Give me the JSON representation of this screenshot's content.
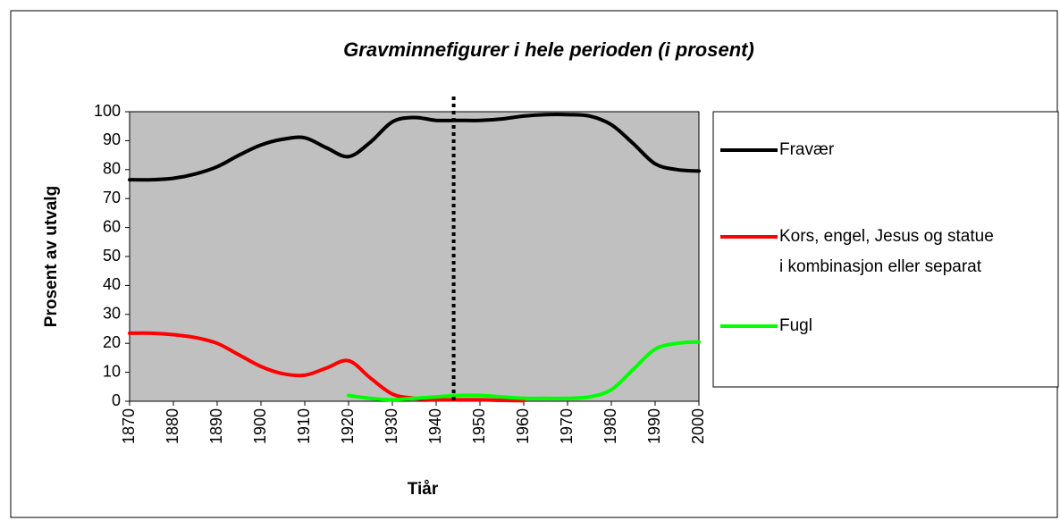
{
  "chart_data": {
    "type": "line",
    "title": "Gravminnefigurer i hele perioden (i prosent)",
    "x_label": "Tiår",
    "y_label": "Prosent av utvalg",
    "x": [
      1870,
      1875,
      1880,
      1885,
      1890,
      1895,
      1900,
      1905,
      1910,
      1915,
      1920,
      1925,
      1930,
      1935,
      1940,
      1945,
      1950,
      1955,
      1960,
      1965,
      1970,
      1975,
      1980,
      1985,
      1990,
      1995,
      2000
    ],
    "series": [
      {
        "name": "Fravær",
        "color": "#000000",
        "values": [
          76.5,
          76.5,
          77,
          78.5,
          81,
          85,
          88.5,
          90.5,
          91,
          87.5,
          84.5,
          89.5,
          96.5,
          98,
          97,
          97,
          97,
          97.5,
          98.5,
          99,
          99,
          98.5,
          95.5,
          89,
          82,
          80,
          79.5
        ]
      },
      {
        "name": "Kors, engel, Jesus og statue i kombinasjon eller separat",
        "color": "#ff0000",
        "values": [
          23.5,
          23.5,
          23,
          22,
          20,
          16,
          12,
          9.5,
          9,
          11.5,
          14,
          8,
          2.5,
          1,
          0.5,
          0.5,
          0.5,
          0.3,
          0.2,
          null,
          null,
          null,
          null,
          null,
          null,
          null,
          null
        ]
      },
      {
        "name": "Fugl",
        "color": "#00ff00",
        "values": [
          null,
          null,
          null,
          null,
          null,
          null,
          null,
          null,
          null,
          null,
          2,
          1,
          0.5,
          1,
          1.5,
          2,
          2,
          1.5,
          1,
          1,
          1,
          1.5,
          4,
          11,
          18,
          20,
          20.5
        ]
      }
    ],
    "xlim": [
      1870,
      2000
    ],
    "xticks": [
      1870,
      1880,
      1890,
      1900,
      1910,
      1920,
      1930,
      1940,
      1950,
      1960,
      1970,
      1980,
      1990,
      2000
    ],
    "ylim": [
      0,
      100
    ],
    "yticks": [
      0,
      10,
      20,
      30,
      40,
      50,
      60,
      70,
      80,
      90,
      100
    ],
    "reference_line_x": 1944,
    "plot_background": "#c0c0c0",
    "legend": "right"
  }
}
